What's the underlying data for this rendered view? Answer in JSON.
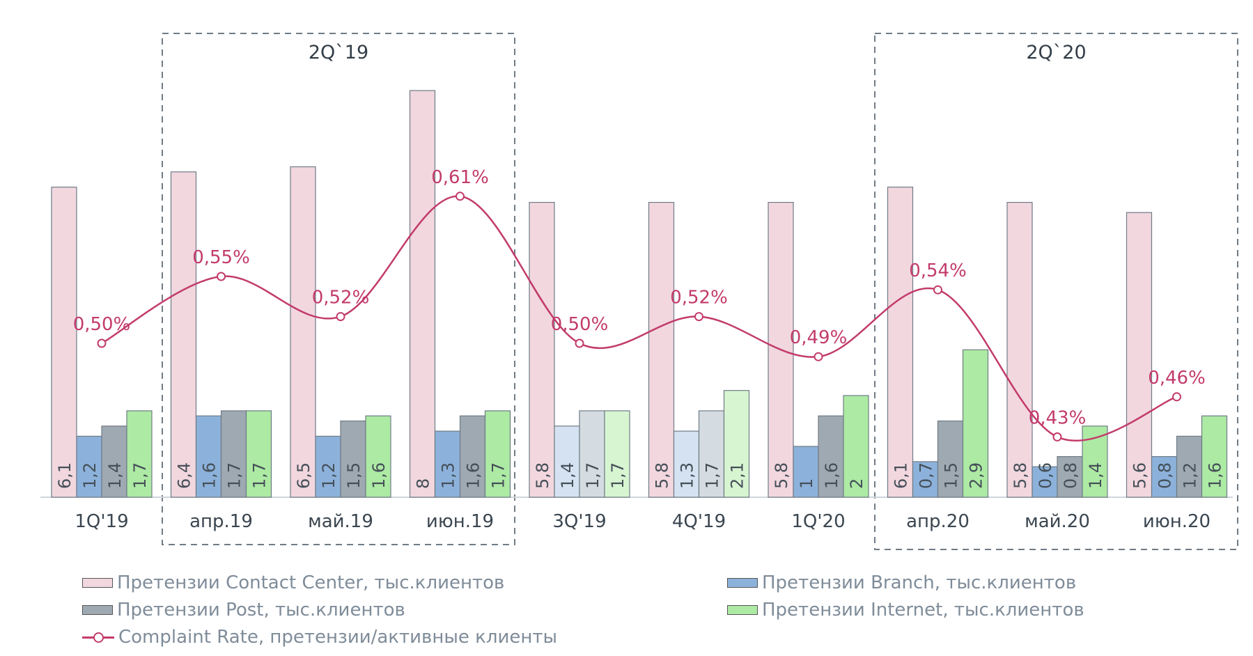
{
  "chart_data": {
    "type": "bar",
    "categories": [
      "1Q'19",
      "апр.19",
      "май.19",
      "июн.19",
      "3Q'19",
      "4Q'19",
      "1Q'20",
      "апр.20",
      "май.20",
      "июн.20"
    ],
    "series": [
      {
        "name": "Претензии Contact Center, тыс.клиентов",
        "values": [
          6.1,
          6.4,
          6.5,
          8.0,
          5.8,
          5.8,
          5.8,
          6.1,
          5.8,
          5.6
        ],
        "labels": [
          "6,1",
          "6,4",
          "6,5",
          "8",
          "5,8",
          "5,8",
          "5,8",
          "6,1",
          "5,8",
          "5,6"
        ],
        "color": "#f2d7df"
      },
      {
        "name": "Претензии Branch, тыс.клиентов",
        "values": [
          1.2,
          1.6,
          1.2,
          1.3,
          1.4,
          1.3,
          1.0,
          0.7,
          0.6,
          0.8
        ],
        "labels": [
          "1,2",
          "1,6",
          "1,2",
          "1,3",
          "1,4",
          "1,3",
          "1",
          "0,7",
          "0,6",
          "0,8"
        ],
        "color": "#8cb2db",
        "light_color": "#d4e2f1"
      },
      {
        "name": "Претензии Post, тыс.клиентов",
        "values": [
          1.4,
          1.7,
          1.5,
          1.6,
          1.7,
          1.7,
          1.6,
          1.5,
          0.8,
          1.2
        ],
        "labels": [
          "1,4",
          "1,7",
          "1,5",
          "1,6",
          "1,7",
          "1,7",
          "1,6",
          "1,5",
          "0,8",
          "1,2"
        ],
        "color": "#9ea9b2",
        "light_color": "#d5dce1"
      },
      {
        "name": "Претензии Internet, тыс.клиентов",
        "values": [
          1.7,
          1.7,
          1.6,
          1.7,
          1.7,
          2.1,
          2.0,
          2.9,
          1.4,
          1.6
        ],
        "labels": [
          "1,7",
          "1,7",
          "1,6",
          "1,7",
          "1,7",
          "2,1",
          "2",
          "2,9",
          "1,4",
          "1,6"
        ],
        "color": "#adeaa4",
        "light_color": "#d7f5d1"
      }
    ],
    "light_categories": [
      "3Q'19",
      "4Q'19"
    ],
    "line_series": {
      "name": "Complaint Rate, претензии/активные клиенты",
      "values": [
        0.5,
        0.55,
        0.52,
        0.61,
        0.5,
        0.52,
        0.49,
        0.54,
        0.43,
        0.46
      ],
      "labels": [
        "0,50%",
        "0,55%",
        "0,52%",
        "0,61%",
        "0,50%",
        "0,52%",
        "0,49%",
        "0,54%",
        "0,43%",
        "0,46%"
      ],
      "color": "#c23b6b"
    },
    "groups": [
      {
        "label": "2Q`19",
        "categories": [
          "апр.19",
          "май.19",
          "июн.19"
        ]
      },
      {
        "label": "2Q`20",
        "categories": [
          "апр.20",
          "май.20",
          "июн.20"
        ]
      }
    ],
    "legend_position": "bottom",
    "grid": false
  }
}
